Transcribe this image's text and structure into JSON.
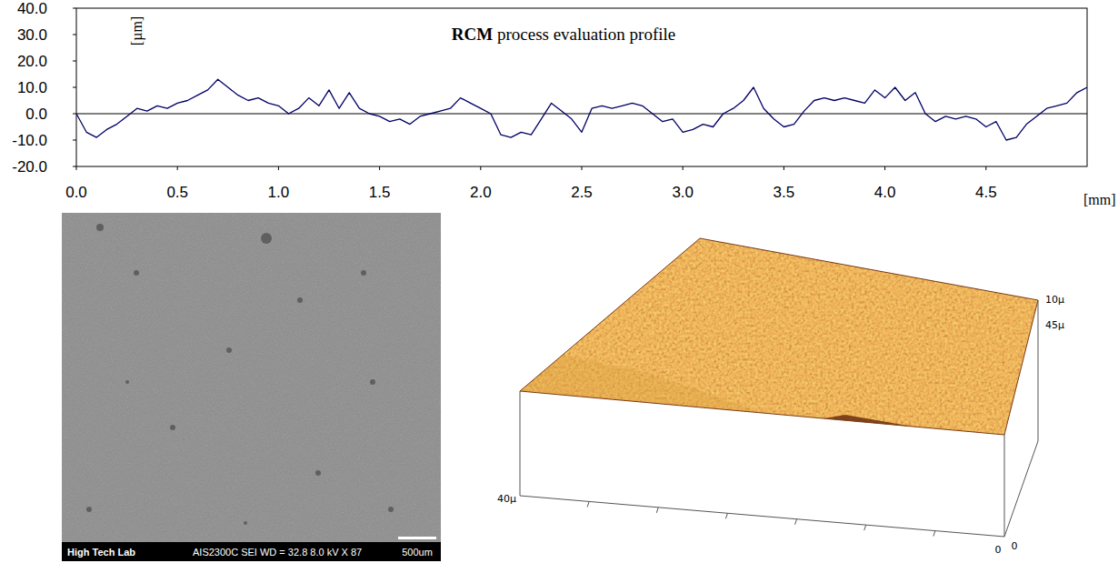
{
  "chart_data": {
    "type": "line",
    "title": "RCM process evaluation profile",
    "y_label": "[µm]",
    "x_label": "[mm]",
    "x": [
      0,
      0.05,
      0.1,
      0.15,
      0.2,
      0.25,
      0.3,
      0.35,
      0.4,
      0.45,
      0.5,
      0.55,
      0.6,
      0.65,
      0.7,
      0.75,
      0.8,
      0.85,
      0.9,
      0.95,
      1,
      1.05,
      1.1,
      1.15,
      1.2,
      1.25,
      1.3,
      1.35,
      1.4,
      1.45,
      1.5,
      1.55,
      1.6,
      1.65,
      1.7,
      1.75,
      1.8,
      1.85,
      1.9,
      1.95,
      2,
      2.05,
      2.1,
      2.15,
      2.2,
      2.25,
      2.3,
      2.35,
      2.4,
      2.45,
      2.5,
      2.55,
      2.6,
      2.65,
      2.7,
      2.75,
      2.8,
      2.85,
      2.9,
      2.95,
      3,
      3.05,
      3.1,
      3.15,
      3.2,
      3.25,
      3.3,
      3.35,
      3.4,
      3.45,
      3.5,
      3.55,
      3.6,
      3.65,
      3.7,
      3.75,
      3.8,
      3.85,
      3.9,
      3.95,
      4,
      4.05,
      4.1,
      4.15,
      4.2,
      4.25,
      4.3,
      4.35,
      4.4,
      4.45,
      4.5,
      4.55,
      4.6,
      4.65,
      4.7,
      4.75,
      4.8,
      4.85,
      4.9,
      4.95,
      5
    ],
    "values": [
      0,
      -7,
      -9,
      -6,
      -4,
      -1,
      2,
      1,
      3,
      2,
      4,
      5,
      7,
      9,
      13,
      10,
      7,
      5,
      6,
      4,
      3,
      0,
      2,
      6,
      3,
      9,
      2,
      8,
      2,
      0,
      -1,
      -3,
      -2,
      -4,
      -1,
      0,
      1,
      2,
      6,
      4,
      2,
      0,
      -8,
      -9,
      -7,
      -8,
      -2,
      4,
      1,
      -2,
      -7,
      2,
      3,
      2,
      3,
      4,
      3,
      0,
      -3,
      -2,
      -7,
      -6,
      -4,
      -5,
      0,
      2,
      5,
      10,
      2,
      -2,
      -5,
      -4,
      1,
      5,
      6,
      5,
      6,
      5,
      4,
      9,
      6,
      10,
      5,
      8,
      0,
      -3,
      -1,
      -2,
      -1,
      -2,
      -5,
      -3,
      -10,
      -9,
      -4,
      -1,
      2,
      3,
      4,
      8,
      10
    ],
    "color": "#000066",
    "xlim": [
      0,
      5
    ],
    "ylim": [
      -20,
      40
    ],
    "xticks": [
      {
        "value": 0,
        "label": "0.0"
      },
      {
        "value": 0.5,
        "label": "0.5"
      },
      {
        "value": 1,
        "label": "1.0"
      },
      {
        "value": 1.5,
        "label": "1.5"
      },
      {
        "value": 2,
        "label": "2.0"
      },
      {
        "value": 2.5,
        "label": "2.5"
      },
      {
        "value": 3,
        "label": "3.0"
      },
      {
        "value": 3.5,
        "label": "3.5"
      },
      {
        "value": 4,
        "label": "4.0"
      },
      {
        "value": 4.5,
        "label": "4.5"
      }
    ],
    "yticks": [
      {
        "value": -20,
        "label": "-20.0"
      },
      {
        "value": -10,
        "label": "-10.0"
      },
      {
        "value": 0,
        "label": "0.0"
      },
      {
        "value": 10,
        "label": "10.0"
      },
      {
        "value": 20,
        "label": "20.0"
      },
      {
        "value": 30,
        "label": "30.0"
      },
      {
        "value": 40,
        "label": "40.0"
      }
    ],
    "grid": false
  },
  "sem_image": {
    "lab": "High Tech Lab",
    "info": "AIS2300C SEI WD = 32.8 8.0 kV X 87",
    "scale_bar": "500um"
  },
  "surface_3d": {
    "labels": [
      "10µ",
      "45µ",
      "40µ",
      "0",
      "0"
    ]
  }
}
